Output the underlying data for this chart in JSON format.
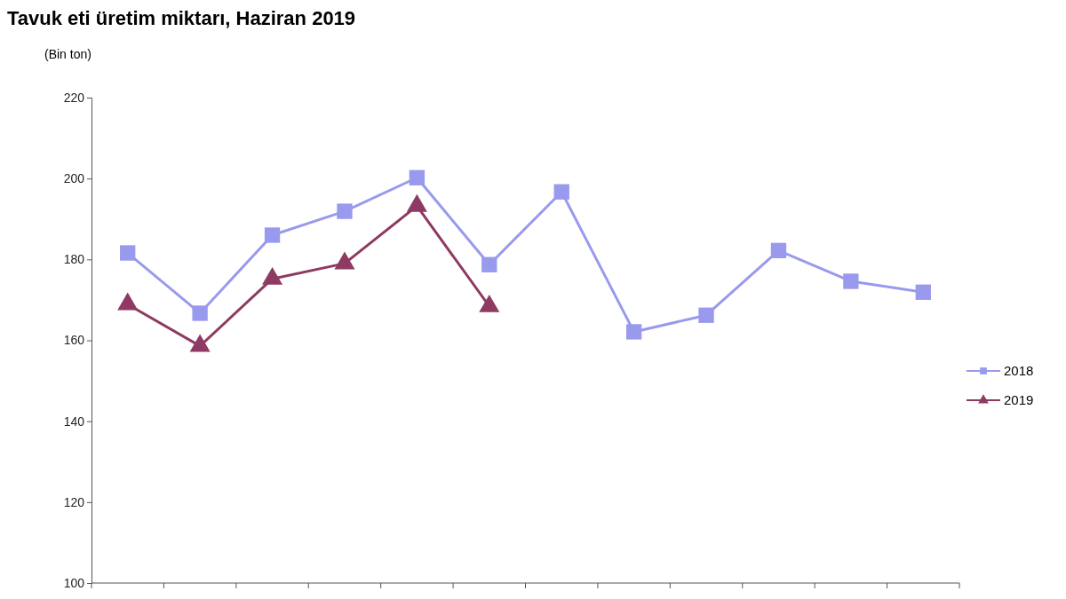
{
  "chart_data": {
    "type": "line",
    "title": "Tavuk eti üretim miktarı, Haziran 2019",
    "ylabel": "(Bin ton)",
    "categories": [
      null,
      null,
      null,
      null,
      null,
      null,
      null,
      null,
      null,
      null,
      null,
      null
    ],
    "series": [
      {
        "name": "2018",
        "color": "#9999ee",
        "marker": "square",
        "values": [
          181.6,
          166.7,
          186,
          191.9,
          200.2,
          178.7,
          196.7,
          162.1,
          166.2,
          182.2,
          174.6,
          171.9
        ]
      },
      {
        "name": "2019",
        "color": "#8e3a62",
        "marker": "triangle",
        "values": [
          168.9,
          158.6,
          175.2,
          179,
          193.2,
          168.4,
          null,
          null,
          null,
          null,
          null,
          null
        ]
      }
    ],
    "ylim": [
      100,
      220
    ],
    "yticks": [
      100,
      120,
      140,
      160,
      180,
      200,
      220
    ],
    "grid": false,
    "legend": "right"
  }
}
